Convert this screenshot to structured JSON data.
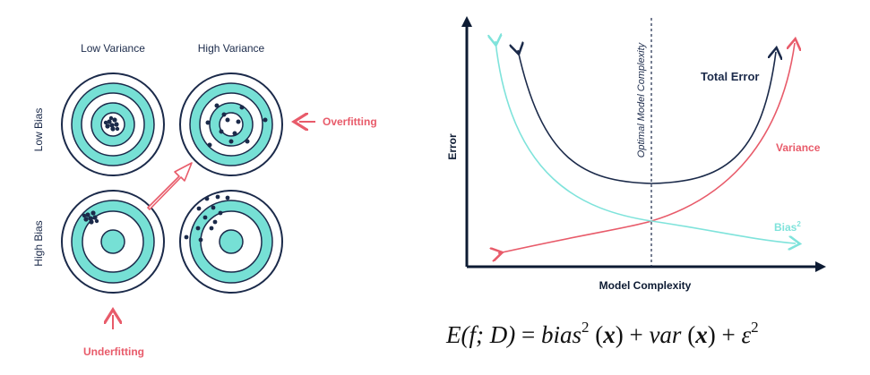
{
  "targets": {
    "column_labels": [
      "Low Variance",
      "High Variance"
    ],
    "row_labels": [
      "Low Bias",
      "High Bias"
    ],
    "overfitting_label": "Overfitting",
    "underfitting_label": "Underfitting"
  },
  "chart": {
    "y_axis_label": "Error",
    "x_axis_label": "Model Complexity",
    "optimal_line_label": "Optimal Model Complexity",
    "total_error_label": "Total Error",
    "variance_label": "Variance",
    "bias_label": "Bias",
    "bias_superscript": "2"
  },
  "formula": {
    "lhs": "E(f; D)",
    "eq": "=",
    "bias": "bias",
    "sq": "2",
    "x": "x",
    "var": "var",
    "plus": "+",
    "eps": "ε",
    "eps_sq": "2"
  },
  "colors": {
    "teal": "#76e0d5",
    "navy": "#1b2a4a",
    "red": "#e85b6a",
    "cyan_curve": "#7fe3db"
  }
}
